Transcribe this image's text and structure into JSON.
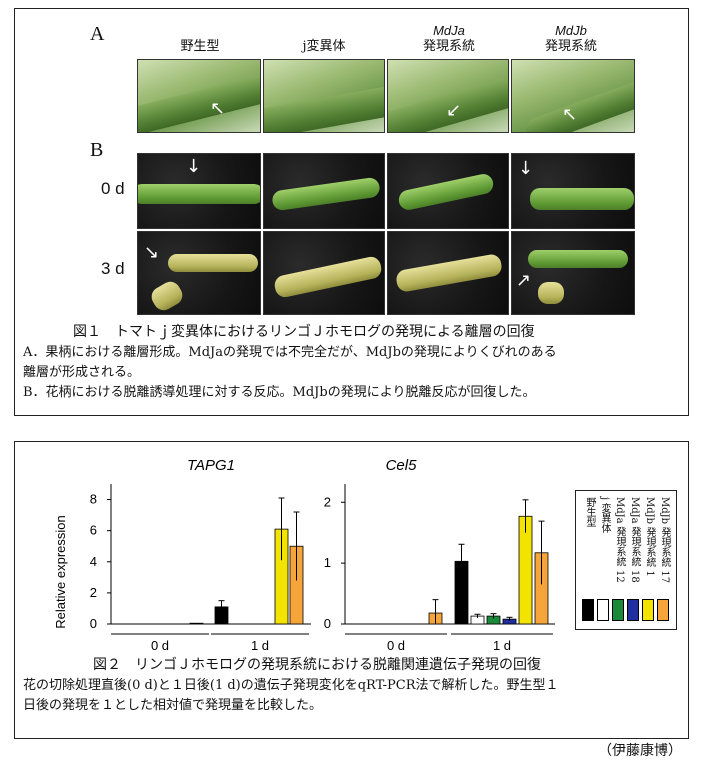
{
  "figure1": {
    "panel_a_letter": "A",
    "panel_b_letter": "B",
    "columns": [
      {
        "line1": "野生型",
        "line2": ""
      },
      {
        "line1": "j変異体",
        "line2": ""
      },
      {
        "line1": "MdJa",
        "line2": "発現系統"
      },
      {
        "line1": "MdJb",
        "line2": "発現系統"
      }
    ],
    "rows": [
      "0 d",
      "3 d"
    ],
    "caption_title": "図１　トマトｊ変異体におけるリンゴＪホモログの発現による離層の回復",
    "caption_lines": [
      "A．果柄における離層形成。MdJaの発現では不完全だが、MdJbの発現によりくびれのある",
      "離層が形成される。",
      "B．花柄における脱離誘導処理に対する反応。MdJbの発現により脱離反応が回復した。"
    ]
  },
  "figure2": {
    "colors": [
      "#000000",
      "#ffffff",
      "#1a8a3a",
      "#1f2fa0",
      "#f2e400",
      "#f5a53a"
    ],
    "legend": [
      {
        "label": "野生型"
      },
      {
        "label": "j 変異体"
      },
      {
        "label": "MdJa 発現系統 12"
      },
      {
        "label": "MdJa 発現系統 18"
      },
      {
        "label": "MdJb 発現系統 1"
      },
      {
        "label": "MdJb 発現系統 17"
      }
    ],
    "caption_title": "図２　リンゴＪホモログの発現系統における脱離関連遺伝子発現の回復",
    "caption_lines": [
      "花の切除処理直後(0 d)と１日後(1 d)の遺伝子発現変化をqRT-PCR法で解析した。野生型１",
      "日後の発現を１とした相対値で発現量を比較した。"
    ]
  },
  "author": "（伊藤康博）",
  "chart_data": [
    {
      "type": "bar",
      "title": "TAPG1",
      "ylabel": "Relative expression",
      "ylim": [
        0,
        9
      ],
      "yticks": [
        0,
        2,
        4,
        6,
        8
      ],
      "categories": [
        "0 d",
        "1 d"
      ],
      "series": [
        {
          "name": "野生型",
          "values": [
            0.0,
            1.1
          ],
          "errors": [
            0.0,
            0.4
          ]
        },
        {
          "name": "j 変異体",
          "values": [
            0.0,
            0.0
          ],
          "errors": [
            0.0,
            0.0
          ]
        },
        {
          "name": "MdJa 発現系統 12",
          "values": [
            0.0,
            0.0
          ],
          "errors": [
            0.0,
            0.0
          ]
        },
        {
          "name": "MdJa 発現系統 18",
          "values": [
            0.0,
            0.0
          ],
          "errors": [
            0.0,
            0.0
          ]
        },
        {
          "name": "MdJb 発現系統 1",
          "values": [
            0.0,
            6.1
          ],
          "errors": [
            0.0,
            2.0
          ]
        },
        {
          "name": "MdJb 発現系統 17",
          "values": [
            0.05,
            5.0
          ],
          "errors": [
            0.0,
            2.2
          ]
        }
      ]
    },
    {
      "type": "bar",
      "title": "Cel5",
      "ylabel": "",
      "ylim": [
        0,
        2.3
      ],
      "yticks": [
        0,
        1,
        2
      ],
      "categories": [
        "0 d",
        "1 d"
      ],
      "series": [
        {
          "name": "野生型",
          "values": [
            0.0,
            1.03
          ],
          "errors": [
            0.0,
            0.28
          ]
        },
        {
          "name": "j 変異体",
          "values": [
            0.0,
            0.13
          ],
          "errors": [
            0.0,
            0.03
          ]
        },
        {
          "name": "MdJa 発現系統 12",
          "values": [
            0.0,
            0.13
          ],
          "errors": [
            0.0,
            0.04
          ]
        },
        {
          "name": "MdJa 発現系統 18",
          "values": [
            0.0,
            0.08
          ],
          "errors": [
            0.0,
            0.03
          ]
        },
        {
          "name": "MdJb 発現系統 1",
          "values": [
            0.0,
            1.77
          ],
          "errors": [
            0.0,
            0.27
          ]
        },
        {
          "name": "MdJb 発現系統 17",
          "values": [
            0.18,
            1.17
          ],
          "errors": [
            0.22,
            0.52
          ]
        }
      ]
    }
  ]
}
